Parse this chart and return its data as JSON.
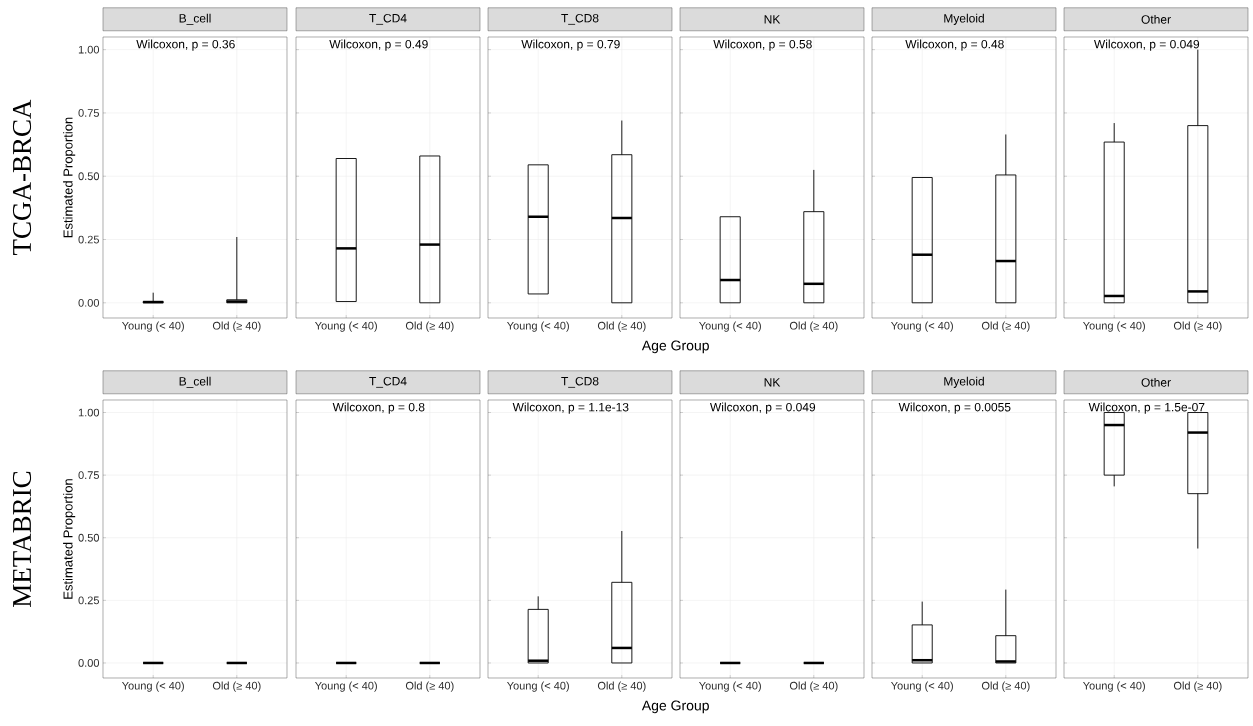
{
  "chart_data": [
    {
      "type": "box",
      "title": "B_cell",
      "subtitle": "TCGA-BRCA",
      "ylabel": "Estimated Proportion",
      "categories": [
        "Young (< 40)",
        "Old (≥ 40)"
      ],
      "boxes": [
        {
          "low": 0,
          "q1": 0,
          "median": 0.003,
          "q3": 0.005,
          "high": 0.04
        },
        {
          "low": 0,
          "q1": 0,
          "median": 0.005,
          "q3": 0.012,
          "high": 0.26
        }
      ],
      "ylim": [
        -0.06,
        1.05
      ],
      "yticks": [
        {
          "value": 0,
          "label": "0.00"
        },
        {
          "value": 0.25,
          "label": "0.25"
        },
        {
          "value": 0.5,
          "label": "0.50"
        },
        {
          "value": 0.75,
          "label": "0.75"
        },
        {
          "value": 1,
          "label": "1.00"
        }
      ],
      "grid": true,
      "annotations": [
        "Wilcoxon, p = 0.36"
      ]
    },
    {
      "type": "box",
      "title": "T_CD4",
      "categories": [
        "Young (< 40)",
        "Old (≥ 40)"
      ],
      "boxes": [
        {
          "low": 0.005,
          "q1": 0.005,
          "median": 0.215,
          "q3": 0.57,
          "high": 0.57
        },
        {
          "low": 0,
          "q1": 0,
          "median": 0.23,
          "q3": 0.58,
          "high": 0.58
        }
      ],
      "ylim": [
        -0.06,
        1.05
      ],
      "yticks": [
        0,
        0.25,
        0.5,
        0.75,
        1
      ],
      "tick_labels": "x",
      "grid": true,
      "annotations": [
        "Wilcoxon, p = 0.49"
      ]
    },
    {
      "type": "box",
      "title": "T_CD8",
      "xlabel": "Age Group",
      "categories": [
        "Young (< 40)",
        "Old (≥ 40)"
      ],
      "boxes": [
        {
          "low": 0.035,
          "q1": 0.035,
          "median": 0.34,
          "q3": 0.545,
          "high": 0.545
        },
        {
          "low": 0,
          "q1": 0,
          "median": 0.335,
          "q3": 0.585,
          "high": 0.72
        }
      ],
      "ylim": [
        -0.06,
        1.05
      ],
      "yticks": [
        0,
        0.25,
        0.5,
        0.75,
        1
      ],
      "tick_labels": "x",
      "grid": true,
      "annotations": [
        "Wilcoxon, p = 0.79"
      ]
    },
    {
      "type": "box",
      "title": "NK",
      "categories": [
        "Young (< 40)",
        "Old (≥ 40)"
      ],
      "boxes": [
        {
          "low": 0,
          "q1": 0,
          "median": 0.09,
          "q3": 0.34,
          "high": 0.34
        },
        {
          "low": 0,
          "q1": 0,
          "median": 0.075,
          "q3": 0.36,
          "high": 0.525
        }
      ],
      "ylim": [
        -0.06,
        1.05
      ],
      "yticks": [
        0,
        0.25,
        0.5,
        0.75,
        1
      ],
      "tick_labels": "x",
      "grid": true,
      "annotations": [
        "Wilcoxon, p = 0.58"
      ]
    },
    {
      "type": "box",
      "title": "Myeloid",
      "categories": [
        "Young (< 40)",
        "Old (≥ 40)"
      ],
      "boxes": [
        {
          "low": 0,
          "q1": 0,
          "median": 0.19,
          "q3": 0.495,
          "high": 0.495
        },
        {
          "low": 0,
          "q1": 0,
          "median": 0.165,
          "q3": 0.505,
          "high": 0.665
        }
      ],
      "ylim": [
        -0.06,
        1.05
      ],
      "yticks": [
        0,
        0.25,
        0.5,
        0.75,
        1
      ],
      "tick_labels": "x",
      "grid": true,
      "annotations": [
        "Wilcoxon, p = 0.48"
      ]
    },
    {
      "type": "box",
      "title": "Other",
      "categories": [
        "Young (< 40)",
        "Old (≥ 40)"
      ],
      "boxes": [
        {
          "low": 0,
          "q1": 0,
          "median": 0.027,
          "q3": 0.635,
          "high": 0.71
        },
        {
          "low": 0,
          "q1": 0,
          "median": 0.045,
          "q3": 0.7,
          "high": 1.0
        }
      ],
      "ylim": [
        -0.06,
        1.05
      ],
      "yticks": [
        0,
        0.25,
        0.5,
        0.75,
        1
      ],
      "tick_labels": "x",
      "grid": true,
      "annotations": [
        "Wilcoxon, p = 0.049"
      ]
    },
    {
      "type": "box",
      "title": "B_cell",
      "subtitle": "METABRIC",
      "ylabel": "Estimated Proportion",
      "categories": [
        "Young (< 40)",
        "Old (≥ 40)"
      ],
      "boxes": [
        {
          "low": 0,
          "q1": 0,
          "median": 0,
          "q3": 0,
          "high": 0
        },
        {
          "low": 0,
          "q1": 0,
          "median": 0,
          "q3": 0,
          "high": 0
        }
      ],
      "ylim": [
        -0.06,
        1.05
      ],
      "yticks": [
        {
          "value": 0,
          "label": "0.00"
        },
        {
          "value": 0.25,
          "label": "0.25"
        },
        {
          "value": 0.5,
          "label": "0.50"
        },
        {
          "value": 0.75,
          "label": "0.75"
        },
        {
          "value": 1,
          "label": "1.00"
        }
      ],
      "grid": true
    },
    {
      "type": "box",
      "title": "T_CD4",
      "categories": [
        "Young (< 40)",
        "Old (≥ 40)"
      ],
      "boxes": [
        {
          "low": 0,
          "q1": 0,
          "median": 0,
          "q3": 0,
          "high": 0
        },
        {
          "low": 0,
          "q1": 0,
          "median": 0,
          "q3": 0,
          "high": 0
        }
      ],
      "ylim": [
        -0.06,
        1.05
      ],
      "yticks": [
        0,
        0.25,
        0.5,
        0.75,
        1
      ],
      "tick_labels": "x",
      "grid": true,
      "annotations": [
        "Wilcoxon, p = 0.8"
      ]
    },
    {
      "type": "box",
      "title": "T_CD8",
      "xlabel": "Age Group",
      "categories": [
        "Young (< 40)",
        "Old (≥ 40)"
      ],
      "boxes": [
        {
          "low": 0,
          "q1": 0,
          "median": 0.009,
          "q3": 0.214,
          "high": 0.266
        },
        {
          "low": 0,
          "q1": 0,
          "median": 0.06,
          "q3": 0.322,
          "high": 0.527
        }
      ],
      "ylim": [
        -0.06,
        1.05
      ],
      "yticks": [
        0,
        0.25,
        0.5,
        0.75,
        1
      ],
      "tick_labels": "x",
      "grid": true,
      "annotations": [
        "Wilcoxon, p = 1.1e-13"
      ]
    },
    {
      "type": "box",
      "title": "NK",
      "categories": [
        "Young (< 40)",
        "Old (≥ 40)"
      ],
      "boxes": [
        {
          "low": 0,
          "q1": 0,
          "median": 0,
          "q3": 0,
          "high": 0
        },
        {
          "low": 0,
          "q1": 0,
          "median": 0,
          "q3": 0,
          "high": 0
        }
      ],
      "ylim": [
        -0.06,
        1.05
      ],
      "yticks": [
        0,
        0.25,
        0.5,
        0.75,
        1
      ],
      "tick_labels": "x",
      "grid": true,
      "annotations": [
        "Wilcoxon, p = 0.049"
      ]
    },
    {
      "type": "box",
      "title": "Myeloid",
      "categories": [
        "Young (< 40)",
        "Old (≥ 40)"
      ],
      "boxes": [
        {
          "low": 0,
          "q1": 0,
          "median": 0.011,
          "q3": 0.152,
          "high": 0.245
        },
        {
          "low": 0,
          "q1": 0,
          "median": 0.006,
          "q3": 0.109,
          "high": 0.293
        }
      ],
      "ylim": [
        -0.06,
        1.05
      ],
      "yticks": [
        0,
        0.25,
        0.5,
        0.75,
        1
      ],
      "tick_labels": "x",
      "grid": true,
      "annotations": [
        "Wilcoxon, p = 0.0055"
      ]
    },
    {
      "type": "box",
      "title": "Other",
      "categories": [
        "Young (< 40)",
        "Old (≥ 40)"
      ],
      "boxes": [
        {
          "low": 0.705,
          "q1": 0.75,
          "median": 0.95,
          "q3": 1.0,
          "high": 1.0
        },
        {
          "low": 0.457,
          "q1": 0.676,
          "median": 0.92,
          "q3": 1.0,
          "high": 1.0
        }
      ],
      "ylim": [
        -0.06,
        1.05
      ],
      "yticks": [
        0,
        0.25,
        0.5,
        0.75,
        1
      ],
      "tick_labels": "x",
      "grid": true,
      "annotations": [
        "Wilcoxon, p = 1.5e-07"
      ]
    }
  ]
}
